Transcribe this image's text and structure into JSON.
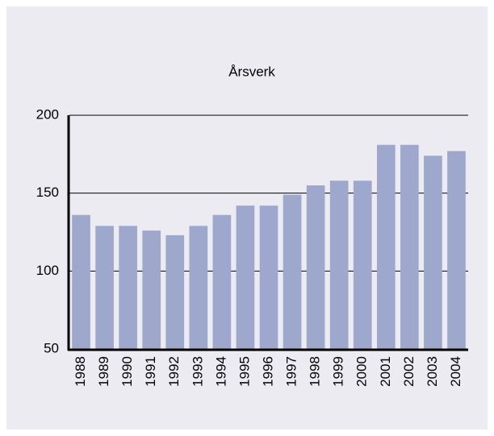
{
  "chart_data": {
    "type": "bar",
    "title": "Årsverk",
    "categories": [
      "1988",
      "1989",
      "1990",
      "1991",
      "1992",
      "1993",
      "1994",
      "1995",
      "1996",
      "1997",
      "1998",
      "1999",
      "2000",
      "2001",
      "2002",
      "2003",
      "2004"
    ],
    "values": [
      136,
      129,
      129,
      126,
      123,
      129,
      136,
      142,
      142,
      149,
      155,
      158,
      158,
      181,
      181,
      174,
      177
    ],
    "color": "#9ea8cc",
    "ylim": [
      50,
      200
    ],
    "yticks": [
      50,
      100,
      150,
      200
    ],
    "grid": true
  }
}
